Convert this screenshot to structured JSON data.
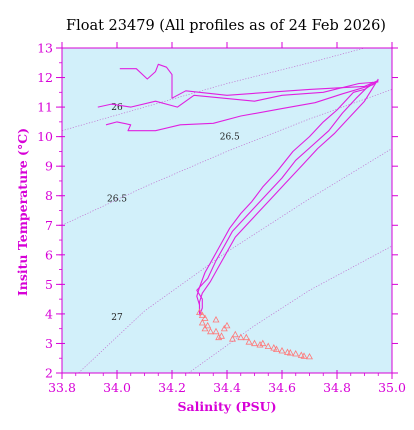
{
  "colors": {
    "plot_background": "#d2f0fa",
    "axis": "#d700d7",
    "profile": "#e020e0",
    "marker": "#ff7777",
    "isopycnal": "#c070d0"
  },
  "chart_data": {
    "type": "scatter",
    "title": "Float 23479  (All profiles as of 24 Feb 2026)",
    "xlabel": "Salinity (PSU)",
    "ylabel": "Insitu Temperature (°C)",
    "xlim": [
      33.8,
      35.0
    ],
    "ylim": [
      2,
      13
    ],
    "x_ticks": [
      "33.8",
      "34.0",
      "34.2",
      "34.4",
      "34.6",
      "34.8",
      "35.0"
    ],
    "y_ticks": [
      "2",
      "3",
      "4",
      "5",
      "6",
      "7",
      "8",
      "9",
      "10",
      "11",
      "12",
      "13"
    ],
    "grid": false,
    "isopycnal_labels": [
      {
        "text": "26",
        "s": 34.0,
        "t": 11.0
      },
      {
        "text": "26.5",
        "s": 34.41,
        "t": 10.0
      },
      {
        "text": "26.5",
        "s": 34.0,
        "t": 7.9
      },
      {
        "text": "27",
        "s": 34.0,
        "t": 3.9
      }
    ],
    "isopycnals": [
      {
        "sigma": 26.0,
        "points": [
          [
            33.8,
            10.2
          ],
          [
            34.1,
            11.0
          ],
          [
            34.4,
            11.8
          ],
          [
            34.7,
            12.5
          ],
          [
            34.9,
            13.0
          ]
        ]
      },
      {
        "sigma": 26.5,
        "points": [
          [
            33.8,
            7.0
          ],
          [
            34.1,
            8.3
          ],
          [
            34.4,
            9.5
          ],
          [
            34.7,
            10.6
          ],
          [
            35.0,
            11.6
          ]
        ]
      },
      {
        "sigma": 26.8,
        "points": [
          [
            33.86,
            2.0
          ],
          [
            34.1,
            4.1
          ],
          [
            34.4,
            6.1
          ],
          [
            34.7,
            7.9
          ],
          [
            35.0,
            9.6
          ]
        ]
      },
      {
        "sigma": 27.1,
        "points": [
          [
            34.26,
            2.0
          ],
          [
            34.5,
            3.6
          ],
          [
            34.7,
            4.8
          ],
          [
            35.0,
            6.3
          ]
        ]
      }
    ],
    "series": [
      {
        "style": "line",
        "points": [
          [
            34.01,
            12.3
          ],
          [
            34.07,
            12.3
          ],
          [
            34.11,
            11.95
          ],
          [
            34.14,
            12.2
          ],
          [
            34.15,
            12.45
          ],
          [
            34.18,
            12.35
          ],
          [
            34.2,
            12.1
          ],
          [
            34.2,
            11.3
          ],
          [
            34.25,
            11.55
          ],
          [
            34.4,
            11.4
          ],
          [
            34.55,
            11.5
          ],
          [
            34.7,
            11.6
          ],
          [
            34.9,
            11.7
          ],
          [
            34.95,
            11.9
          ]
        ]
      },
      {
        "style": "line",
        "points": [
          [
            33.93,
            11.0
          ],
          [
            33.98,
            11.1
          ],
          [
            34.05,
            11.0
          ],
          [
            34.14,
            11.2
          ],
          [
            34.22,
            11.0
          ],
          [
            34.28,
            11.4
          ],
          [
            34.5,
            11.2
          ],
          [
            34.6,
            11.4
          ],
          [
            34.75,
            11.5
          ],
          [
            34.88,
            11.8
          ],
          [
            34.95,
            11.85
          ]
        ]
      },
      {
        "style": "line",
        "points": [
          [
            33.96,
            10.4
          ],
          [
            34.0,
            10.5
          ],
          [
            34.05,
            10.4
          ],
          [
            34.04,
            10.2
          ],
          [
            34.14,
            10.2
          ],
          [
            34.23,
            10.4
          ],
          [
            34.35,
            10.45
          ],
          [
            34.45,
            10.7
          ],
          [
            34.6,
            10.95
          ],
          [
            34.72,
            11.15
          ],
          [
            34.82,
            11.45
          ],
          [
            34.93,
            11.75
          ],
          [
            34.95,
            11.9
          ]
        ]
      },
      {
        "style": "line",
        "points": [
          [
            34.95,
            11.9
          ],
          [
            34.9,
            11.6
          ],
          [
            34.86,
            11.5
          ],
          [
            34.8,
            10.9
          ],
          [
            34.75,
            10.5
          ],
          [
            34.7,
            10.0
          ],
          [
            34.64,
            9.5
          ],
          [
            34.58,
            8.8
          ],
          [
            34.53,
            8.3
          ],
          [
            34.49,
            7.8
          ],
          [
            34.45,
            7.4
          ],
          [
            34.41,
            6.9
          ],
          [
            34.38,
            6.4
          ],
          [
            34.35,
            5.9
          ],
          [
            34.32,
            5.4
          ],
          [
            34.3,
            4.9
          ],
          [
            34.29,
            4.6
          ],
          [
            34.3,
            4.3
          ],
          [
            34.3,
            4.0
          ]
        ]
      },
      {
        "style": "line",
        "points": [
          [
            34.93,
            11.85
          ],
          [
            34.87,
            11.3
          ],
          [
            34.82,
            10.8
          ],
          [
            34.77,
            10.2
          ],
          [
            34.71,
            9.7
          ],
          [
            34.65,
            9.2
          ],
          [
            34.6,
            8.6
          ],
          [
            34.55,
            8.1
          ],
          [
            34.5,
            7.6
          ],
          [
            34.46,
            7.2
          ],
          [
            34.42,
            6.8
          ],
          [
            34.39,
            6.3
          ],
          [
            34.36,
            5.8
          ],
          [
            34.33,
            5.2
          ],
          [
            34.29,
            4.8
          ],
          [
            34.31,
            4.5
          ],
          [
            34.31,
            4.2
          ],
          [
            34.3,
            3.95
          ]
        ]
      },
      {
        "style": "line",
        "points": [
          [
            34.95,
            11.95
          ],
          [
            34.9,
            11.2
          ],
          [
            34.84,
            10.6
          ],
          [
            34.79,
            10.1
          ],
          [
            34.73,
            9.6
          ],
          [
            34.67,
            9.0
          ],
          [
            34.61,
            8.4
          ],
          [
            34.56,
            7.9
          ],
          [
            34.51,
            7.4
          ],
          [
            34.47,
            7.0
          ],
          [
            34.43,
            6.6
          ],
          [
            34.4,
            6.1
          ],
          [
            34.37,
            5.6
          ],
          [
            34.34,
            5.1
          ],
          [
            34.31,
            4.7
          ],
          [
            34.3,
            4.4
          ],
          [
            34.3,
            4.1
          ]
        ]
      },
      {
        "style": "triangles",
        "points": [
          [
            34.3,
            4.05
          ],
          [
            34.31,
            3.95
          ],
          [
            34.32,
            3.85
          ],
          [
            34.31,
            3.7
          ],
          [
            34.33,
            3.6
          ],
          [
            34.32,
            3.5
          ],
          [
            34.34,
            3.4
          ],
          [
            34.36,
            3.8
          ],
          [
            34.36,
            3.4
          ],
          [
            34.37,
            3.2
          ],
          [
            34.38,
            3.25
          ],
          [
            34.39,
            3.5
          ],
          [
            34.4,
            3.6
          ],
          [
            34.42,
            3.15
          ],
          [
            34.43,
            3.3
          ],
          [
            34.45,
            3.2
          ],
          [
            34.47,
            3.2
          ],
          [
            34.48,
            3.05
          ],
          [
            34.5,
            3.0
          ],
          [
            34.52,
            2.95
          ],
          [
            34.53,
            3.0
          ],
          [
            34.55,
            2.9
          ],
          [
            34.57,
            2.85
          ],
          [
            34.58,
            2.8
          ],
          [
            34.6,
            2.75
          ],
          [
            34.62,
            2.7
          ],
          [
            34.63,
            2.68
          ],
          [
            34.65,
            2.65
          ],
          [
            34.67,
            2.6
          ],
          [
            34.68,
            2.57
          ],
          [
            34.7,
            2.55
          ]
        ]
      }
    ]
  }
}
